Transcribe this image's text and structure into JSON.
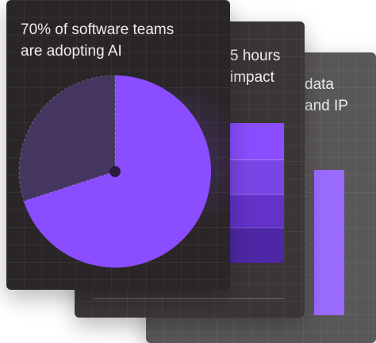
{
  "cards": {
    "back": {
      "title": "data\nand IP"
    },
    "middle": {
      "title": "5 hours\nimpact"
    },
    "front": {
      "title": "70% of software teams\nare adopting AI"
    }
  },
  "colors": {
    "accent": "#8a4dff",
    "accent_dark": "#5a2fb8",
    "muted_slice": "#4a3a6a",
    "card_front": "#2a2526",
    "card_mid": "#3a3536",
    "card_back": "#5a5758"
  },
  "chart_data": [
    {
      "type": "pie",
      "title": "70% of software teams are adopting AI",
      "values": [
        70,
        30
      ],
      "categories": [
        "",
        ""
      ]
    }
  ]
}
